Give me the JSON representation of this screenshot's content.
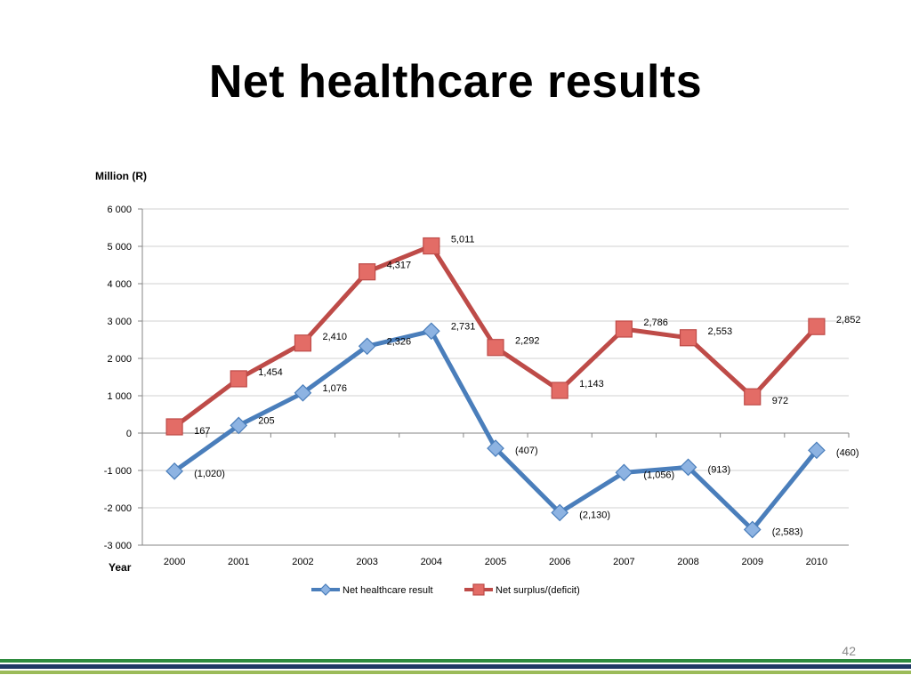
{
  "slide": {
    "title": "Net healthcare results",
    "page_number": "42"
  },
  "colors": {
    "healthcare": "#4a7ebb",
    "healthcare_marker": "#8db3e2",
    "surplus": "#be4b48",
    "surplus_marker": "#e36c66",
    "grid": "#d0d0d0",
    "axis": "#868686",
    "footer_green": "#2e8b3e",
    "footer_navy": "#1f3864",
    "footer_light": "#9bbb59"
  },
  "chart_data": {
    "type": "line",
    "ylabel": "Million (R)",
    "xlabel": "Year",
    "ylim": [
      -3000,
      6000
    ],
    "ytick_values": [
      6000,
      5000,
      4000,
      3000,
      2000,
      1000,
      0,
      -1000,
      -2000,
      -3000
    ],
    "ytick_labels": [
      "6 000",
      "5 000",
      "4 000",
      "3 000",
      "2 000",
      "1 000",
      "0",
      "-1 000",
      "-2 000",
      "-3 000"
    ],
    "grid": true,
    "legend_position": "bottom",
    "categories": [
      "2000",
      "2001",
      "2002",
      "2003",
      "2004",
      "2005",
      "2006",
      "2007",
      "2008",
      "2009",
      "2010"
    ],
    "series": [
      {
        "name": "Net healthcare result",
        "marker": "diamond",
        "values": [
          -1020,
          205,
          1076,
          2326,
          2731,
          -407,
          -2130,
          -1056,
          -913,
          -2583,
          -460
        ],
        "labels": [
          "(1,020)",
          "205",
          "1,076",
          "2,326",
          "2,731",
          "(407)",
          "(2,130)",
          "(1,056)",
          "(913)",
          "(2,583)",
          "(460)"
        ]
      },
      {
        "name": "Net surplus/(deficit)",
        "marker": "square",
        "values": [
          167,
          1454,
          2410,
          4317,
          5011,
          2292,
          1143,
          2786,
          2553,
          972,
          2852
        ],
        "labels": [
          "167",
          "1,454",
          "2,410",
          "4,317",
          "5,011",
          "2,292",
          "1,143",
          "2,786",
          "2,553",
          "972",
          "2,852"
        ]
      }
    ]
  }
}
